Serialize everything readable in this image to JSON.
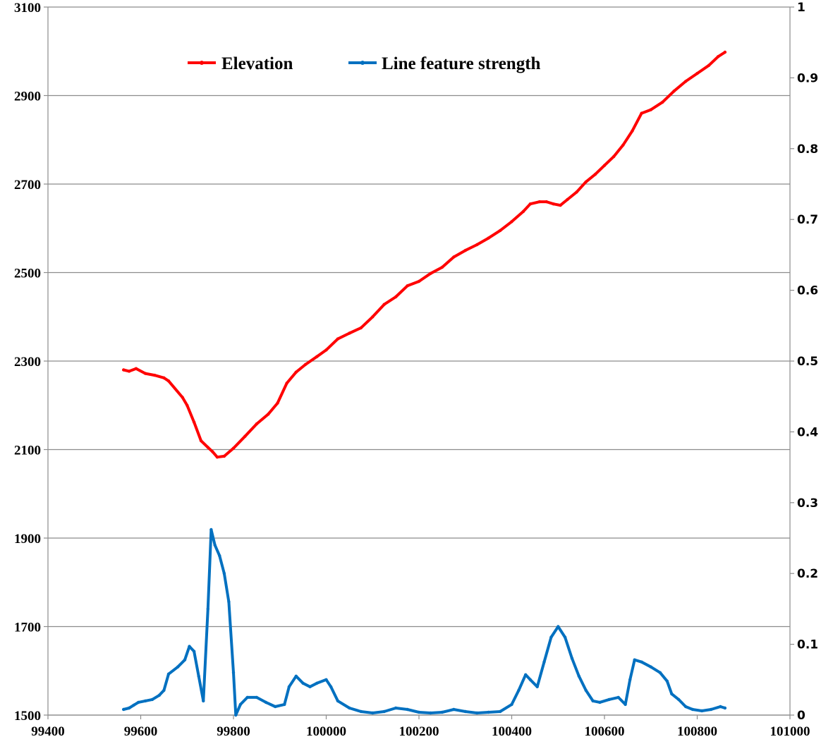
{
  "chart_data": {
    "type": "line",
    "title": "",
    "xlabel": "",
    "ylabel": "",
    "xlim": [
      99400,
      101000
    ],
    "ylim_left": [
      1500,
      3100
    ],
    "ylim_right": [
      0,
      1
    ],
    "x_ticks": [
      "99400",
      "99600",
      "99800",
      "100000",
      "100200",
      "100400",
      "100600",
      "100800",
      "101000"
    ],
    "y_ticks_left": [
      "3100",
      "2900",
      "2700",
      "2500",
      "2300",
      "2100",
      "1900",
      "1700",
      "1500"
    ],
    "y_ticks_right": [
      "1",
      "0.9",
      "0.8",
      "0.7",
      "0.6",
      "0.5",
      "0.4",
      "0.3",
      "0.2",
      "0.1",
      "0"
    ],
    "grid": "horizontal",
    "legend_position": "top-left",
    "series": [
      {
        "name": "Elevation",
        "axis": "left",
        "color": "#ff0000",
        "points": [
          [
            99563,
            2280
          ],
          [
            99575,
            2277
          ],
          [
            99590,
            2283
          ],
          [
            99610,
            2272
          ],
          [
            99630,
            2268
          ],
          [
            99650,
            2262
          ],
          [
            99660,
            2255
          ],
          [
            99690,
            2218
          ],
          [
            99700,
            2200
          ],
          [
            99715,
            2162
          ],
          [
            99730,
            2120
          ],
          [
            99745,
            2105
          ],
          [
            99755,
            2095
          ],
          [
            99765,
            2083
          ],
          [
            99780,
            2085
          ],
          [
            99800,
            2103
          ],
          [
            99825,
            2130
          ],
          [
            99850,
            2158
          ],
          [
            99875,
            2180
          ],
          [
            99895,
            2205
          ],
          [
            99915,
            2250
          ],
          [
            99935,
            2275
          ],
          [
            99955,
            2292
          ],
          [
            99980,
            2310
          ],
          [
            100000,
            2325
          ],
          [
            100025,
            2350
          ],
          [
            100050,
            2363
          ],
          [
            100075,
            2375
          ],
          [
            100100,
            2400
          ],
          [
            100125,
            2428
          ],
          [
            100150,
            2445
          ],
          [
            100175,
            2470
          ],
          [
            100200,
            2480
          ],
          [
            100225,
            2498
          ],
          [
            100250,
            2512
          ],
          [
            100275,
            2535
          ],
          [
            100300,
            2550
          ],
          [
            100325,
            2563
          ],
          [
            100350,
            2578
          ],
          [
            100375,
            2595
          ],
          [
            100400,
            2615
          ],
          [
            100425,
            2638
          ],
          [
            100440,
            2655
          ],
          [
            100460,
            2660
          ],
          [
            100475,
            2660
          ],
          [
            100490,
            2655
          ],
          [
            100505,
            2652
          ],
          [
            100520,
            2665
          ],
          [
            100540,
            2682
          ],
          [
            100560,
            2705
          ],
          [
            100580,
            2722
          ],
          [
            100600,
            2742
          ],
          [
            100620,
            2762
          ],
          [
            100640,
            2788
          ],
          [
            100660,
            2820
          ],
          [
            100680,
            2860
          ],
          [
            100700,
            2868
          ],
          [
            100725,
            2885
          ],
          [
            100750,
            2910
          ],
          [
            100775,
            2932
          ],
          [
            100800,
            2950
          ],
          [
            100825,
            2968
          ],
          [
            100845,
            2988
          ],
          [
            100860,
            2998
          ]
        ]
      },
      {
        "name": "Line feature strength",
        "axis": "right",
        "color": "#0070c0",
        "points": [
          [
            99563,
            0.008
          ],
          [
            99575,
            0.01
          ],
          [
            99585,
            0.014
          ],
          [
            99595,
            0.018
          ],
          [
            99610,
            0.02
          ],
          [
            99625,
            0.022
          ],
          [
            99640,
            0.028
          ],
          [
            99650,
            0.035
          ],
          [
            99660,
            0.058
          ],
          [
            99680,
            0.068
          ],
          [
            99695,
            0.078
          ],
          [
            99705,
            0.097
          ],
          [
            99715,
            0.09
          ],
          [
            99725,
            0.055
          ],
          [
            99735,
            0.02
          ],
          [
            99745,
            0.15
          ],
          [
            99752,
            0.262
          ],
          [
            99760,
            0.24
          ],
          [
            99770,
            0.225
          ],
          [
            99780,
            0.2
          ],
          [
            99790,
            0.16
          ],
          [
            99800,
            0.06
          ],
          [
            99805,
            0.0
          ],
          [
            99815,
            0.015
          ],
          [
            99830,
            0.025
          ],
          [
            99850,
            0.025
          ],
          [
            99870,
            0.018
          ],
          [
            99890,
            0.012
          ],
          [
            99910,
            0.015
          ],
          [
            99920,
            0.04
          ],
          [
            99935,
            0.055
          ],
          [
            99950,
            0.045
          ],
          [
            99965,
            0.04
          ],
          [
            99980,
            0.045
          ],
          [
            100000,
            0.05
          ],
          [
            100010,
            0.04
          ],
          [
            100025,
            0.02
          ],
          [
            100050,
            0.01
          ],
          [
            100075,
            0.005
          ],
          [
            100100,
            0.003
          ],
          [
            100125,
            0.005
          ],
          [
            100150,
            0.01
          ],
          [
            100175,
            0.008
          ],
          [
            100200,
            0.004
          ],
          [
            100225,
            0.003
          ],
          [
            100250,
            0.004
          ],
          [
            100275,
            0.008
          ],
          [
            100300,
            0.005
          ],
          [
            100325,
            0.003
          ],
          [
            100350,
            0.004
          ],
          [
            100375,
            0.005
          ],
          [
            100400,
            0.015
          ],
          [
            100415,
            0.035
          ],
          [
            100430,
            0.057
          ],
          [
            100440,
            0.05
          ],
          [
            100455,
            0.04
          ],
          [
            100470,
            0.075
          ],
          [
            100485,
            0.11
          ],
          [
            100500,
            0.125
          ],
          [
            100515,
            0.11
          ],
          [
            100530,
            0.08
          ],
          [
            100545,
            0.055
          ],
          [
            100560,
            0.035
          ],
          [
            100575,
            0.02
          ],
          [
            100590,
            0.018
          ],
          [
            100610,
            0.022
          ],
          [
            100630,
            0.025
          ],
          [
            100645,
            0.015
          ],
          [
            100655,
            0.05
          ],
          [
            100665,
            0.078
          ],
          [
            100680,
            0.075
          ],
          [
            100700,
            0.068
          ],
          [
            100720,
            0.06
          ],
          [
            100735,
            0.048
          ],
          [
            100745,
            0.03
          ],
          [
            100760,
            0.022
          ],
          [
            100775,
            0.012
          ],
          [
            100790,
            0.008
          ],
          [
            100810,
            0.006
          ],
          [
            100830,
            0.008
          ],
          [
            100850,
            0.012
          ],
          [
            100860,
            0.01
          ]
        ]
      }
    ]
  }
}
